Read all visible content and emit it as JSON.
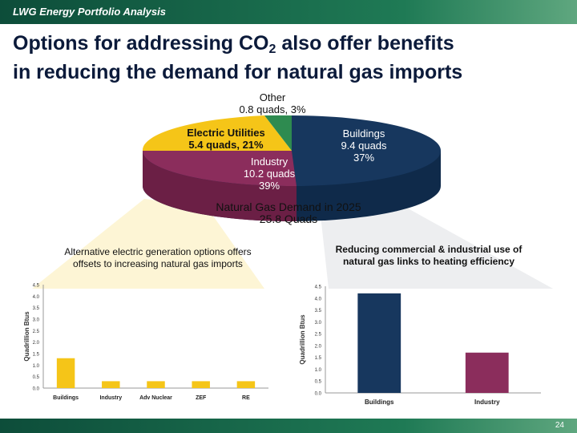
{
  "header": {
    "brand": "LWG Energy Portfolio Analysis"
  },
  "title": {
    "line1_pre": "Options for addressing CO",
    "line1_sub": "2",
    "line1_post": " also offer benefits",
    "line2": "in reducing the demand for natural gas imports"
  },
  "pie": {
    "other": {
      "l1": "Other",
      "l2": "0.8 quads,  3%"
    },
    "electric": {
      "l1": "Electric Utilities",
      "l2": "5.4 quads,  21%"
    },
    "industry": {
      "l1": "Industry",
      "l2": "10.2 quads",
      "l3": "39%"
    },
    "buildings": {
      "l1": "Buildings",
      "l2": "9.4 quads",
      "l3": "37%"
    },
    "caption1": "Natural Gas Demand in 2025",
    "caption2": "25.8 Quads",
    "colors": {
      "other": "#2e8b50",
      "electric": "#f5c518",
      "industry": "#8b2d5c",
      "buildings": "#17375e"
    }
  },
  "left_panel": {
    "title": "Alternative electric generation options offers offsets to increasing natural gas imports"
  },
  "right_panel": {
    "title": "Reducing commercial & industrial use of natural gas links to heating efficiency"
  },
  "chart_data": [
    {
      "type": "bar",
      "categories": [
        "Buildings",
        "Industry",
        "Adv Nuclear",
        "ZEF",
        "RE"
      ],
      "values": [
        1.3,
        0.3,
        0.3,
        0.3,
        0.3
      ],
      "ylabel": "Quadrillion Btus",
      "ylim": [
        0,
        4.5
      ],
      "yticks": [
        "0.0",
        "0.5",
        "1.0",
        "1.5",
        "2.0",
        "2.5",
        "3.0",
        "3.5",
        "4.0",
        "4.5"
      ],
      "color": "#f5c518"
    },
    {
      "type": "bar",
      "categories": [
        "Buildings",
        "Industry"
      ],
      "values": [
        4.2,
        1.7
      ],
      "colors": [
        "#17375e",
        "#8b2d5c"
      ],
      "ylabel": "Quadrillion Btus",
      "ylim": [
        0,
        4.5
      ],
      "yticks": [
        "0.0",
        "0.5",
        "1.0",
        "1.5",
        "2.0",
        "2.5",
        "3.0",
        "3.5",
        "4.0",
        "4.5"
      ]
    }
  ],
  "footer": {
    "page": "24"
  }
}
